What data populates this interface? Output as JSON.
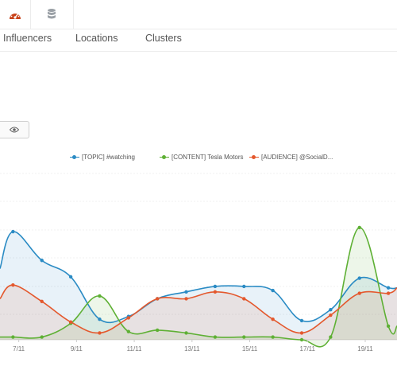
{
  "topbar": {
    "icons": [
      "dashboard-gauge-icon",
      "database-icon"
    ],
    "accent": "#c8421a"
  },
  "tabs": [
    {
      "label": "Influencers"
    },
    {
      "label": "Locations"
    },
    {
      "label": "Clusters"
    }
  ],
  "toolbar": {
    "eye_icon": "eye-icon"
  },
  "chart_data": {
    "type": "line",
    "x_ticks": [
      "7/11",
      "9/11",
      "11/11",
      "13/11",
      "15/11",
      "17/11",
      "19/11"
    ],
    "x_domain": [
      6.35,
      20.1
    ],
    "ylim": [
      0,
      100
    ],
    "series": [
      {
        "name": "[TOPIC] #watching",
        "color": "#2a8bc4",
        "points": [
          [
            6.35,
            52
          ],
          [
            6.8,
            79
          ],
          [
            7.8,
            58
          ],
          [
            8.8,
            46
          ],
          [
            9.8,
            15
          ],
          [
            10.8,
            17
          ],
          [
            11.8,
            30
          ],
          [
            12.8,
            35
          ],
          [
            13.8,
            39
          ],
          [
            14.8,
            39
          ],
          [
            15.8,
            36
          ],
          [
            16.8,
            14
          ],
          [
            17.8,
            22
          ],
          [
            18.8,
            45
          ],
          [
            19.8,
            38
          ],
          [
            20.1,
            38
          ]
        ]
      },
      {
        "name": "[CONTENT] Tesla Motors",
        "color": "#5eb034",
        "points": [
          [
            6.35,
            2
          ],
          [
            6.8,
            2
          ],
          [
            7.8,
            2
          ],
          [
            8.8,
            12
          ],
          [
            9.8,
            32
          ],
          [
            10.8,
            6
          ],
          [
            11.8,
            7
          ],
          [
            12.8,
            5
          ],
          [
            13.8,
            2
          ],
          [
            14.8,
            2
          ],
          [
            15.8,
            2
          ],
          [
            16.8,
            0
          ],
          [
            17.8,
            2
          ],
          [
            18.8,
            82
          ],
          [
            19.8,
            10
          ],
          [
            20.1,
            10
          ]
        ]
      },
      {
        "name": "[AUDIENCE] @SocialD...",
        "color": "#e4582d",
        "points": [
          [
            6.35,
            30
          ],
          [
            6.8,
            40
          ],
          [
            7.8,
            28
          ],
          [
            8.8,
            13
          ],
          [
            9.8,
            5
          ],
          [
            10.8,
            16
          ],
          [
            11.8,
            30
          ],
          [
            12.8,
            30
          ],
          [
            13.8,
            35
          ],
          [
            14.8,
            30
          ],
          [
            15.8,
            15
          ],
          [
            16.8,
            5
          ],
          [
            17.8,
            18
          ],
          [
            18.8,
            34
          ],
          [
            19.8,
            34
          ],
          [
            20.1,
            38
          ]
        ]
      }
    ]
  }
}
